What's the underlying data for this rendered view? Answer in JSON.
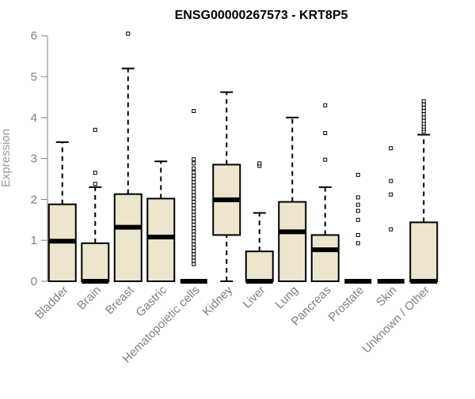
{
  "chart_data": {
    "type": "box",
    "title": "ENSG00000267573 - KRT8P5",
    "ylabel": "Expression",
    "xlabel": "",
    "ylim": [
      0,
      6
    ],
    "yticks": [
      "0",
      "1",
      "2",
      "3",
      "4",
      "5",
      "6"
    ],
    "grid": false,
    "colors": {
      "box_fill": "#ede5cd",
      "box_stroke": "#000000",
      "median": "#000000",
      "axis": "#808080",
      "title": "#000000"
    },
    "categories": [
      "Bladder",
      "Brain",
      "Breast",
      "Gastric",
      "Hematopoietic cells",
      "Kidney",
      "Liver",
      "Lung",
      "Pancreas",
      "Prostate",
      "Skin",
      "Unknown / Other"
    ],
    "boxes": [
      {
        "category": "Bladder",
        "whisker_low": 0,
        "q1": 0,
        "median": 0.98,
        "q3": 1.88,
        "whisker_high": 3.4,
        "outliers": []
      },
      {
        "category": "Brain",
        "whisker_low": 0,
        "q1": 0,
        "median": 0,
        "q3": 0.93,
        "whisker_high": 2.3,
        "outliers": [
          2.38,
          2.65,
          3.7
        ]
      },
      {
        "category": "Breast",
        "whisker_low": 0,
        "q1": 0,
        "median": 1.32,
        "q3": 2.13,
        "whisker_high": 5.2,
        "outliers": [
          6.05
        ]
      },
      {
        "category": "Gastric",
        "whisker_low": 0,
        "q1": 0,
        "median": 1.08,
        "q3": 2.02,
        "whisker_high": 2.93,
        "outliers": []
      },
      {
        "category": "Hematopoietic cells",
        "whisker_low": 0,
        "q1": 0,
        "median": 0,
        "q3": 0,
        "whisker_high": 0,
        "outliers": [
          0.42,
          0.5,
          0.58,
          0.66,
          0.74,
          0.82,
          0.9,
          0.98,
          1.06,
          1.14,
          1.22,
          1.3,
          1.38,
          1.46,
          1.54,
          1.62,
          1.7,
          1.78,
          1.86,
          1.94,
          2.02,
          2.1,
          2.18,
          2.26,
          2.34,
          2.42,
          2.5,
          2.58,
          2.66,
          2.76,
          2.88,
          2.98,
          4.16
        ]
      },
      {
        "category": "Kidney",
        "whisker_low": 0,
        "q1": 1.13,
        "median": 1.99,
        "q3": 2.85,
        "whisker_high": 4.62,
        "outliers": []
      },
      {
        "category": "Liver",
        "whisker_low": 0,
        "q1": 0,
        "median": 0,
        "q3": 0.73,
        "whisker_high": 1.67,
        "outliers": [
          2.82,
          2.88
        ]
      },
      {
        "category": "Lung",
        "whisker_low": 0,
        "q1": 0,
        "median": 1.21,
        "q3": 1.94,
        "whisker_high": 4.0,
        "outliers": []
      },
      {
        "category": "Pancreas",
        "whisker_low": 0,
        "q1": 0,
        "median": 0.77,
        "q3": 1.13,
        "whisker_high": 2.3,
        "outliers": [
          2.97,
          3.62,
          4.3
        ]
      },
      {
        "category": "Prostate",
        "whisker_low": 0,
        "q1": 0,
        "median": 0,
        "q3": 0,
        "whisker_high": 0,
        "outliers": [
          0.93,
          1.13,
          1.5,
          1.72,
          1.87,
          2.05,
          2.6
        ]
      },
      {
        "category": "Skin",
        "whisker_low": 0,
        "q1": 0,
        "median": 0,
        "q3": 0,
        "whisker_high": 0,
        "outliers": [
          1.27,
          2.12,
          2.45,
          3.25
        ]
      },
      {
        "category": "Unknown / Other",
        "whisker_low": 0,
        "q1": 0,
        "median": 0,
        "q3": 1.44,
        "whisker_high": 3.58,
        "outliers": [
          3.66,
          3.72,
          3.78,
          3.85,
          3.92,
          4.0,
          4.08,
          4.16,
          4.24,
          4.32,
          4.4
        ]
      }
    ]
  }
}
